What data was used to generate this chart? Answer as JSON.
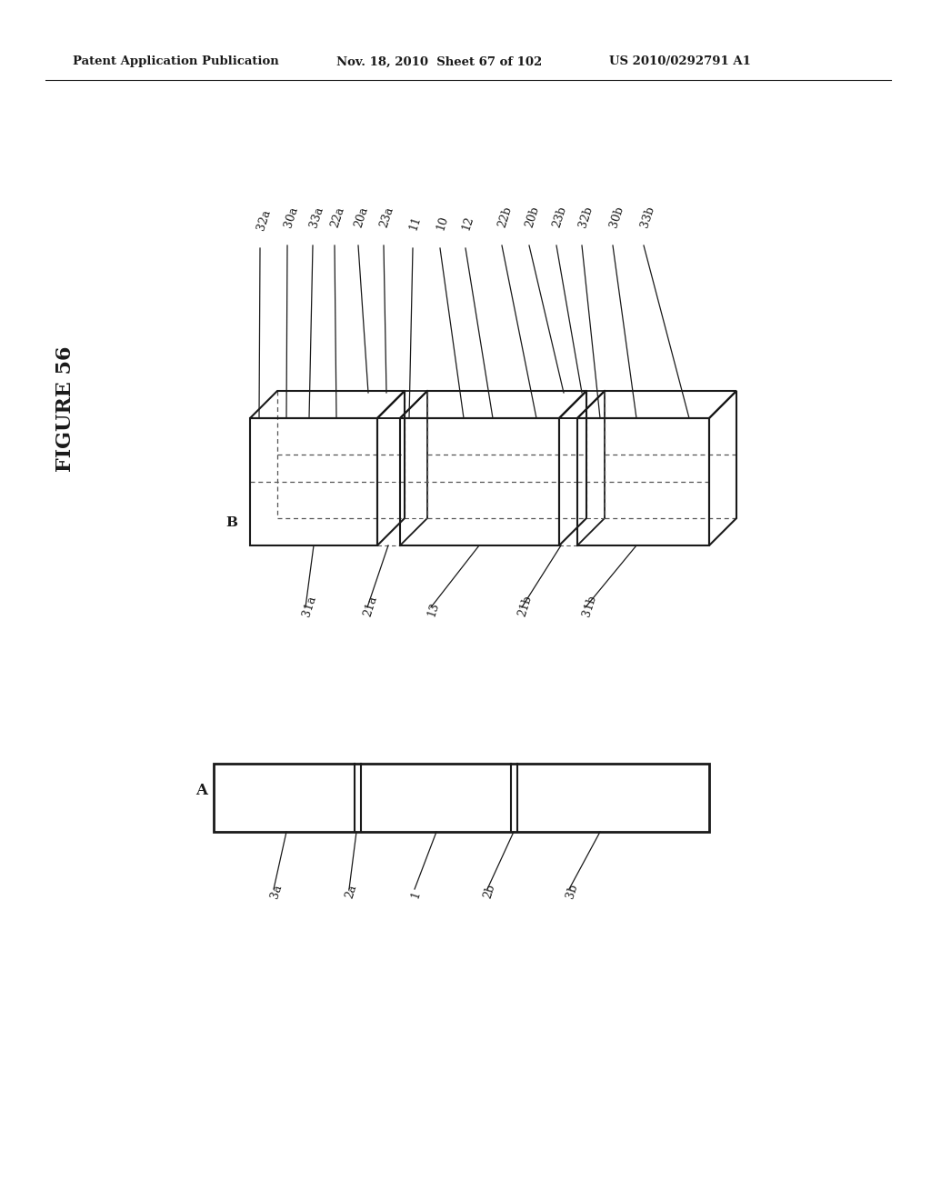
{
  "header_left": "Patent Application Publication",
  "header_middle": "Nov. 18, 2010  Sheet 67 of 102",
  "header_right": "US 2010/0292791 A1",
  "bg_color": "#ffffff",
  "line_color": "#1a1a1a",
  "dashed_color": "#555555",
  "figure_label": "FIGURE 56",
  "diagram_B_label": "B",
  "diagram_A_label": "A",
  "top_labels": [
    "32a",
    "30a",
    "33a",
    "22a",
    "20a",
    "23a",
    "11",
    "10",
    "12",
    "22b",
    "20b",
    "23b",
    "32b",
    "30b",
    "33b"
  ],
  "bottom_labels_B": [
    "31a",
    "21a",
    "13",
    "21b",
    "31b"
  ],
  "bottom_labels_A": [
    "3a",
    "2a",
    "1",
    "2b",
    "3b"
  ]
}
